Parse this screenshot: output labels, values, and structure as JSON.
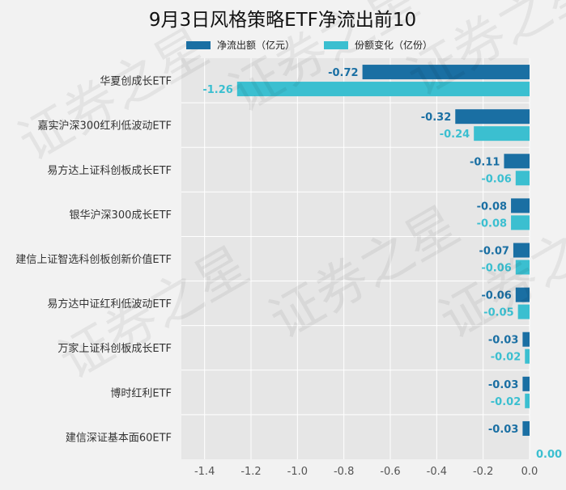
{
  "chart_data": {
    "type": "bar",
    "orientation": "horizontal",
    "title": "9月3日风格策略ETF净流出前10",
    "categories": [
      "华夏创成长ETF",
      "嘉实沪深300红利低波动ETF",
      "易方达上证科创板成长ETF",
      "银华沪深300成长ETF",
      "建信上证智选科创板创新价值ETF",
      "易方达中证红利低波动ETF",
      "万家上证科创板成长ETF",
      "博时红利ETF",
      "建信深证基本面60ETF"
    ],
    "series": [
      {
        "name": "净流出额（亿元）",
        "color": "#1a6fa3",
        "values": [
          -0.72,
          -0.32,
          -0.11,
          -0.08,
          -0.07,
          -0.06,
          -0.03,
          -0.03,
          -0.03
        ],
        "labels": [
          "-0.72",
          "-0.32",
          "-0.11",
          "-0.08",
          "-0.07",
          "-0.06",
          "-0.03",
          "-0.03",
          "-0.03"
        ]
      },
      {
        "name": "份额变化（亿份）",
        "color": "#3bbfd0",
        "values": [
          -1.26,
          -0.24,
          -0.06,
          -0.08,
          -0.06,
          -0.05,
          -0.02,
          -0.02,
          0.0
        ],
        "labels": [
          "-1.26",
          "-0.24",
          "-0.06",
          "-0.08",
          "-0.06",
          "-0.05",
          "-0.02",
          "-0.02",
          "0.00"
        ]
      }
    ],
    "x_ticks": [
      "-1.4",
      "-1.2",
      "-1.0",
      "-0.8",
      "-0.6",
      "-0.4",
      "-0.2",
      "0.0"
    ],
    "xlim": [
      -1.5,
      0.0
    ],
    "grid": true,
    "legend_position": "top",
    "watermark": "证券之星"
  }
}
